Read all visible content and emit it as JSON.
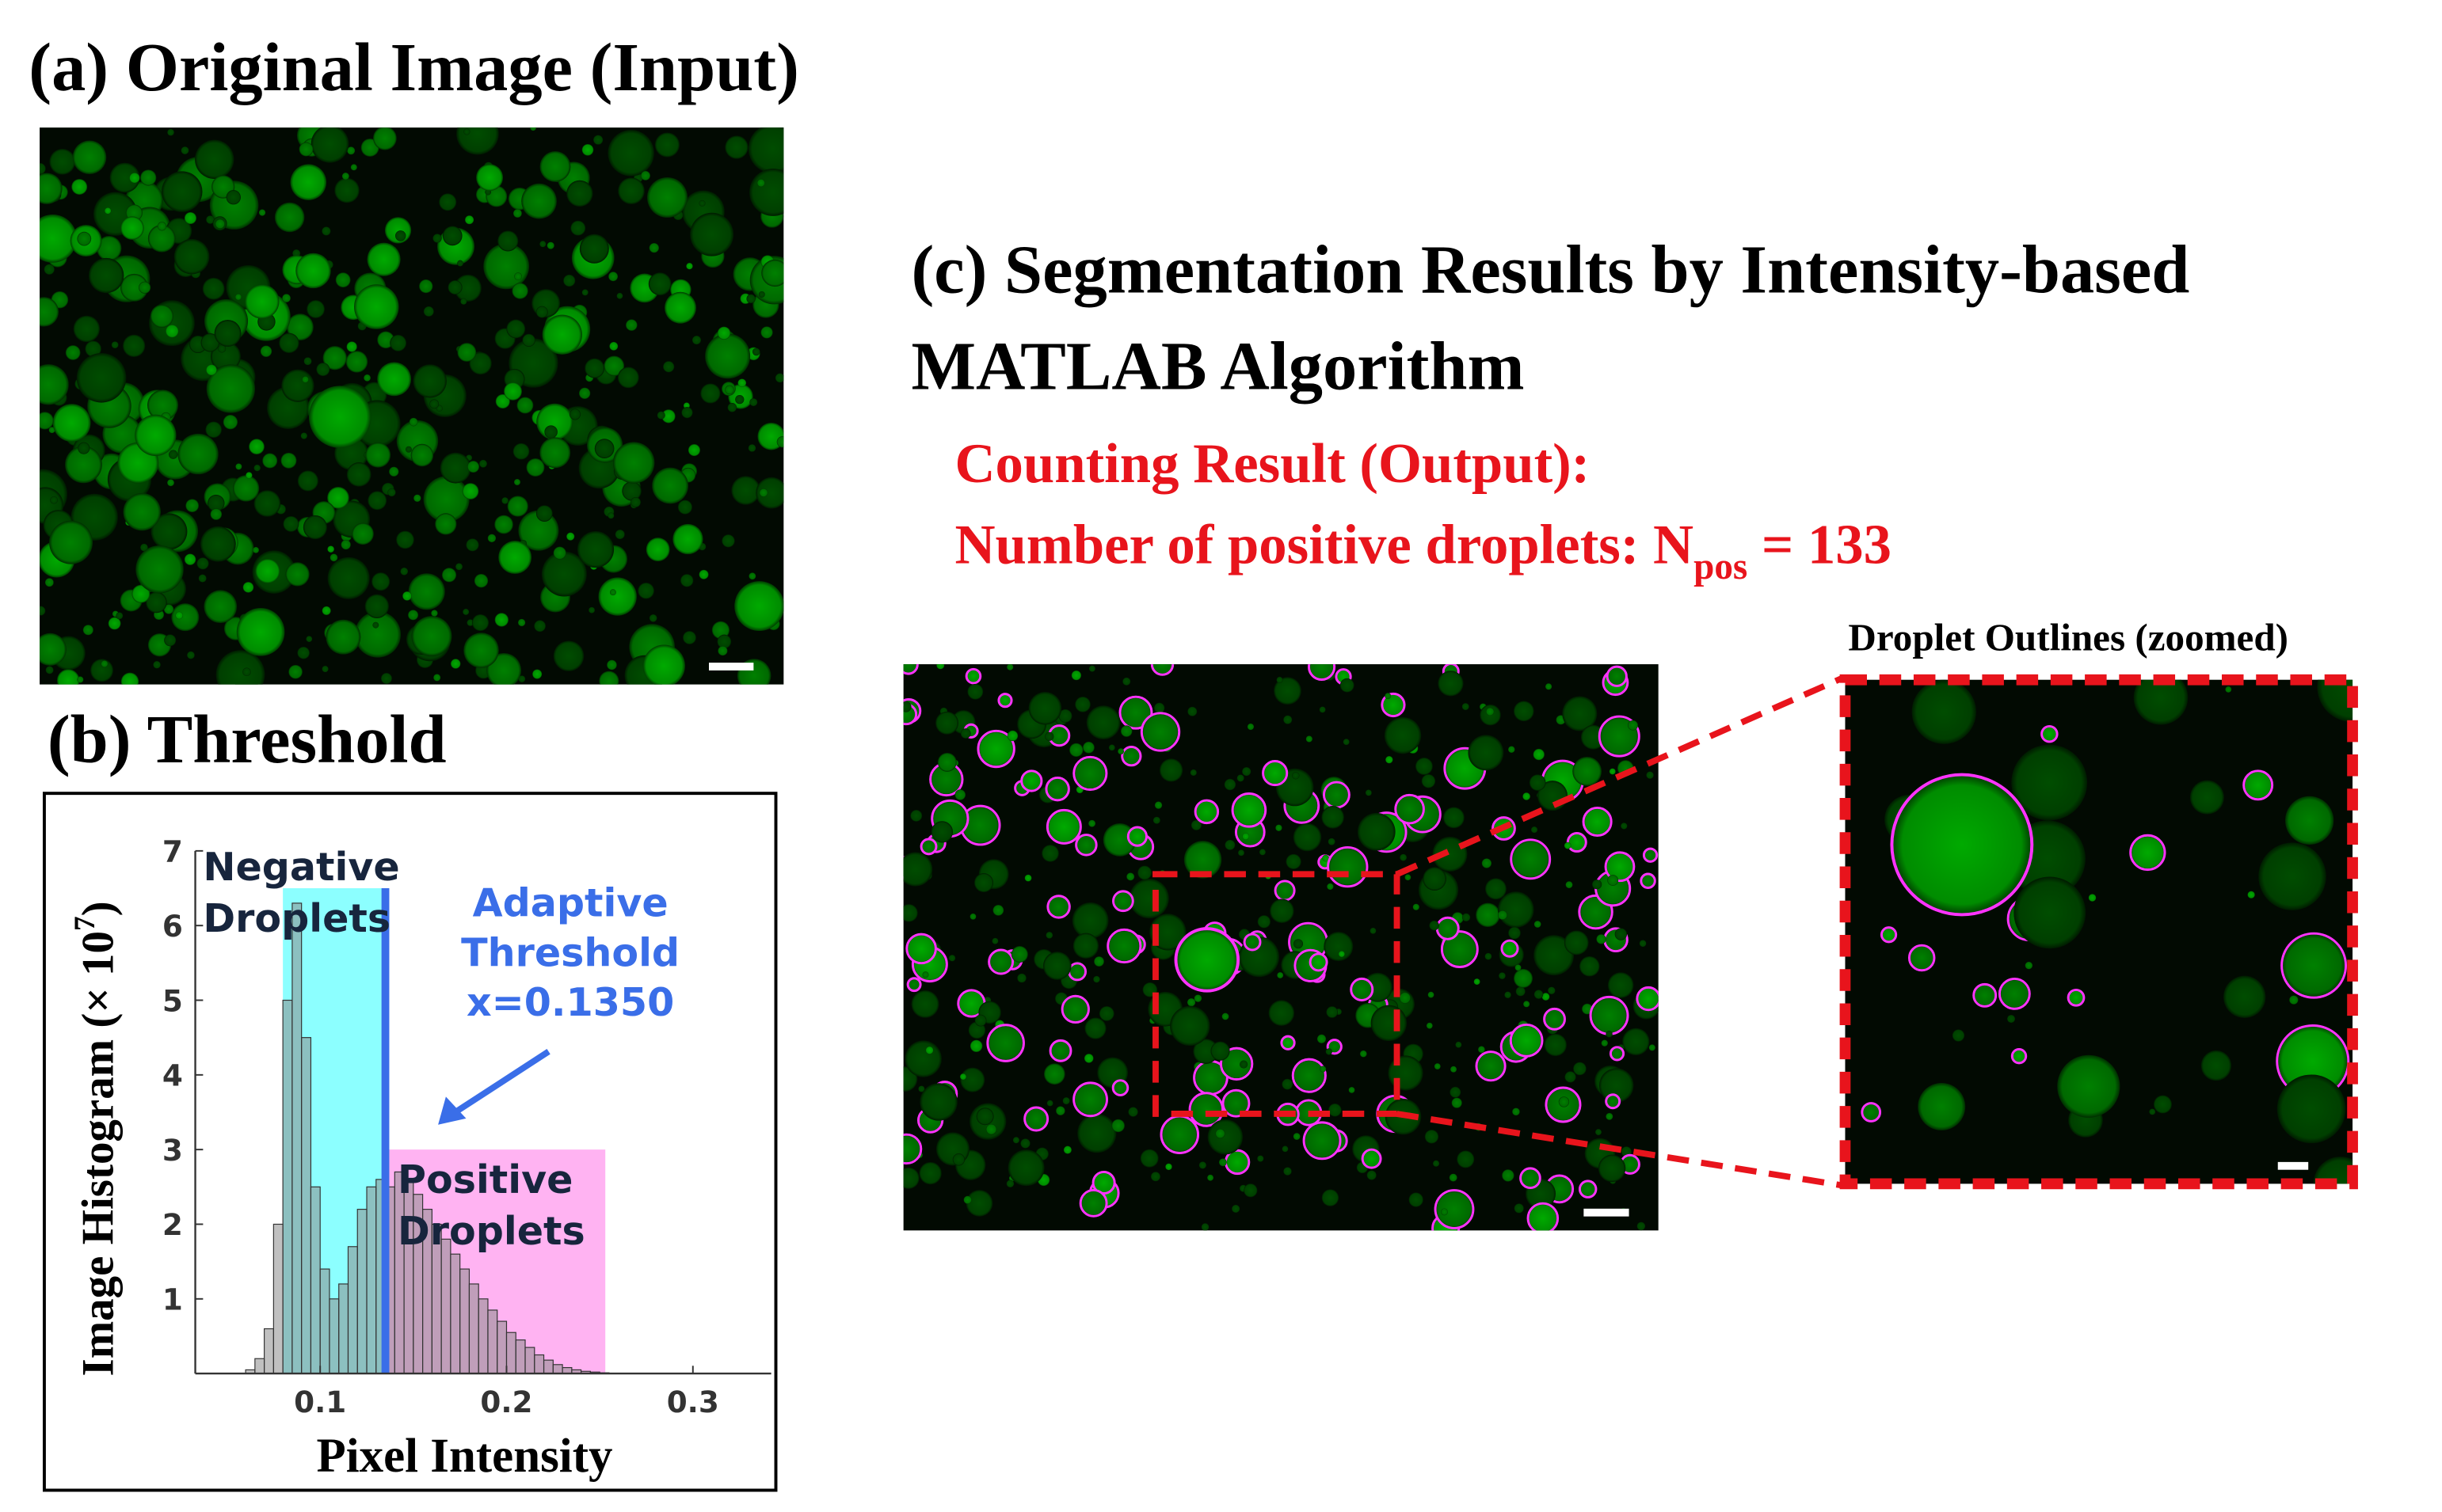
{
  "panel_a": {
    "title": "(a) Original Image (Input)"
  },
  "panel_b": {
    "title": "(b) Threshold"
  },
  "chart_data": {
    "type": "histogram",
    "x_label": "Pixel Intensity",
    "y_label": {
      "text": "Image Histogram (× 10",
      "superscript": "7",
      "suffix": ")"
    },
    "bins": [
      0.06,
      0.065,
      0.07,
      0.075,
      0.08,
      0.085,
      0.09,
      0.095,
      0.1,
      0.105,
      0.11,
      0.115,
      0.12,
      0.125,
      0.13,
      0.135,
      0.14,
      0.145,
      0.15,
      0.155,
      0.16,
      0.165,
      0.17,
      0.175,
      0.18,
      0.185,
      0.19,
      0.195,
      0.2,
      0.205,
      0.21,
      0.215,
      0.22,
      0.225,
      0.23,
      0.235,
      0.24,
      0.245,
      0.25,
      0.255,
      0.26
    ],
    "counts": [
      0.05,
      0.2,
      0.6,
      2.0,
      5.0,
      6.3,
      4.5,
      2.5,
      1.4,
      1.0,
      1.2,
      1.7,
      2.2,
      2.5,
      2.6,
      2.5,
      2.7,
      2.6,
      2.4,
      2.2,
      2.0,
      1.8,
      1.6,
      1.4,
      1.2,
      1.0,
      0.85,
      0.7,
      0.55,
      0.45,
      0.35,
      0.25,
      0.18,
      0.12,
      0.08,
      0.05,
      0.03,
      0.02,
      0.01,
      0.005
    ],
    "color": "#8c8c8c",
    "xlim": [
      0.033,
      0.342
    ],
    "ylim": [
      0,
      7
    ],
    "xticks": [
      0.1,
      0.2,
      0.3
    ],
    "yticks": [
      1,
      2,
      3,
      4,
      5,
      6,
      7
    ],
    "regions": [
      {
        "label_lines": [
          "Negative",
          "Droplets"
        ],
        "range": [
          0.08,
          0.135
        ],
        "height": 6.5,
        "color": "#66ffff"
      },
      {
        "label_lines": [
          "Positive",
          "Droplets"
        ],
        "range": [
          0.135,
          0.253
        ],
        "height": 3.0,
        "color": "#ff99ee"
      }
    ],
    "threshold": {
      "value": 0.135,
      "label_lines": [
        "Adaptive",
        "Threshold",
        "x=0.1350"
      ],
      "color": "#3a6ee8"
    }
  },
  "panel_c": {
    "title_lines": [
      "(c) Segmentation Results by Intensity-based",
      "MATLAB Algorithm"
    ],
    "result_heading": "Counting Result (Output):",
    "result_line": {
      "prefix": "Number of positive droplets: N",
      "subscript": "pos",
      "suffix": " = 133"
    },
    "zoom_title": "Droplet Outlines (zoomed)"
  }
}
